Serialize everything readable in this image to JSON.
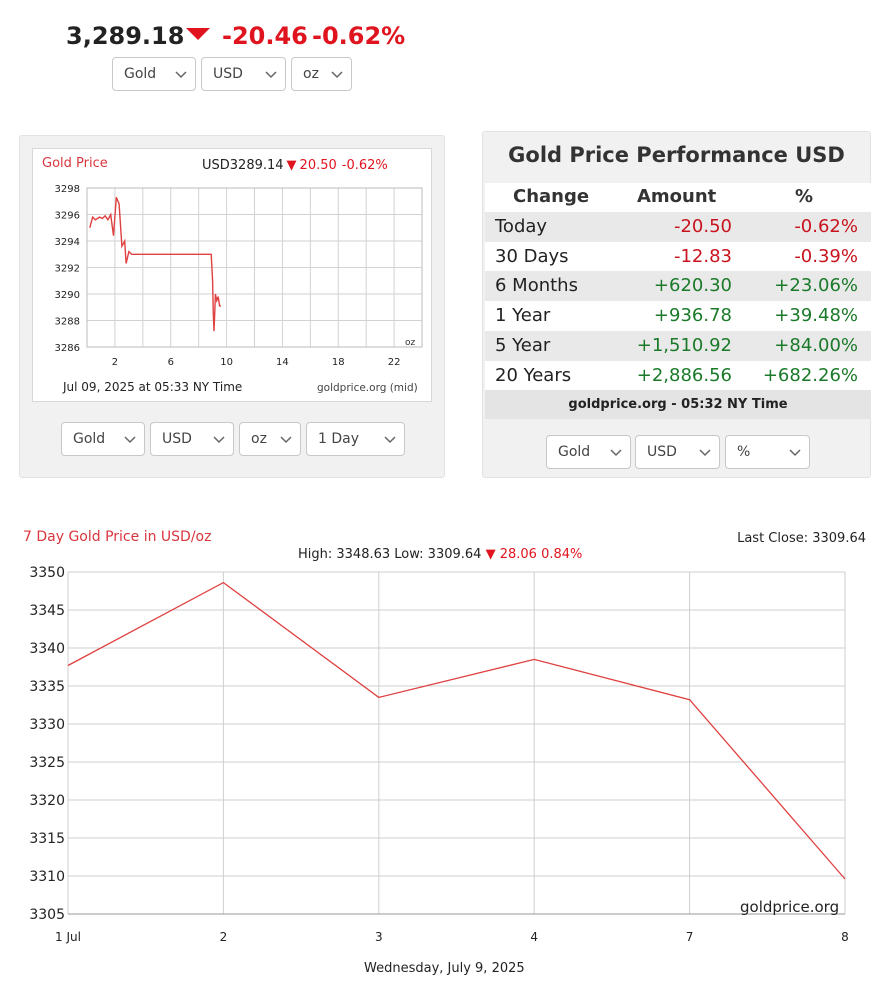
{
  "header": {
    "price": "3,289.18",
    "change": "-20.46",
    "change_pct": "-0.62%",
    "selects": {
      "metal": "Gold",
      "currency": "USD",
      "unit": "oz"
    }
  },
  "small_chart": {
    "title": "Gold Price",
    "quote_prefix": "USD3289.14",
    "quote_change": "20.50",
    "quote_pct": "-0.62%",
    "unit_label": "oz",
    "timestamp": "Jul 09, 2025 at 05:33 NY Time",
    "source": "goldprice.org (mid)",
    "selects": {
      "metal": "Gold",
      "currency": "USD",
      "unit": "oz",
      "range": "1 Day"
    }
  },
  "performance": {
    "title": "Gold Price Performance USD",
    "headers": {
      "change": "Change",
      "amount": "Amount",
      "pct": "%"
    },
    "rows": [
      {
        "label": "Today",
        "amount": "-20.50",
        "pct": "-0.62%",
        "dir": "neg"
      },
      {
        "label": "30 Days",
        "amount": "-12.83",
        "pct": "-0.39%",
        "dir": "neg"
      },
      {
        "label": "6 Months",
        "amount": "+620.30",
        "pct": "+23.06%",
        "dir": "pos"
      },
      {
        "label": "1 Year",
        "amount": "+936.78",
        "pct": "+39.48%",
        "dir": "pos"
      },
      {
        "label": "5 Year",
        "amount": "+1,510.92",
        "pct": "+84.00%",
        "dir": "pos"
      },
      {
        "label": "20 Years",
        "amount": "+2,886.56",
        "pct": "+682.26%",
        "dir": "pos"
      }
    ],
    "footer": "goldprice.org - 05:32 NY Time",
    "selects": {
      "metal": "Gold",
      "currency": "USD",
      "mode": "%"
    }
  },
  "big_chart": {
    "title": "7 Day Gold Price in USD/oz",
    "last_close_label": "Last Close: 3309.64",
    "high_low_label": "High: 3348.63 Low: 3309.64",
    "change_label": "28.06 0.84%",
    "watermark": "goldprice.org",
    "date_label": "Wednesday, July 9, 2025"
  },
  "colors": {
    "red": "#e0141e",
    "green": "#1b7a2a",
    "line": "#e04040"
  },
  "chart_data": [
    {
      "type": "line",
      "title": "Gold Price",
      "x_ticks": [
        "2",
        "6",
        "10",
        "14",
        "18",
        "22"
      ],
      "y_ticks": [
        "3298",
        "3296",
        "3294",
        "3292",
        "3290",
        "3288",
        "3286"
      ],
      "xlim": [
        0,
        24
      ],
      "ylim": [
        3286,
        3298
      ],
      "x": [
        0.2,
        0.4,
        0.6,
        0.9,
        1.1,
        1.3,
        1.5,
        1.7,
        1.9,
        2.1,
        2.3,
        2.5,
        2.7,
        2.8,
        3.0,
        3.2,
        3.5,
        3.8,
        4.0,
        4.5,
        5.0,
        5.5,
        6.0,
        6.5,
        7.0,
        7.5,
        8.0,
        8.5,
        8.9,
        9.0,
        9.05,
        9.1,
        9.15,
        9.2,
        9.3,
        9.4,
        9.5,
        9.6
      ],
      "y": [
        3295.0,
        3295.8,
        3295.6,
        3295.8,
        3295.7,
        3295.9,
        3295.6,
        3296.0,
        3294.4,
        3297.3,
        3296.8,
        3293.6,
        3294.0,
        3292.3,
        3293.2,
        3293.0,
        3293.0,
        3293.0,
        3293.0,
        3293.0,
        3293.0,
        3293.0,
        3293.0,
        3293.0,
        3293.0,
        3293.0,
        3293.0,
        3293.0,
        3293.0,
        3291.0,
        3288.5,
        3287.2,
        3288.5,
        3290.0,
        3289.5,
        3289.8,
        3289.1,
        3289.1
      ],
      "xlabel": "",
      "ylabel": ""
    },
    {
      "type": "line",
      "title": "7 Day Gold Price in USD/oz",
      "categories": [
        "1 Jul",
        "2",
        "3",
        "4",
        "7",
        "8"
      ],
      "values": [
        3337.7,
        3348.6,
        3333.5,
        3338.5,
        3333.2,
        3309.6
      ],
      "y_ticks": [
        "3350",
        "3345",
        "3340",
        "3335",
        "3330",
        "3325",
        "3320",
        "3315",
        "3310",
        "3305"
      ],
      "ylim": [
        3305,
        3350
      ],
      "xlabel": "Wednesday, July 9, 2025",
      "ylabel": ""
    }
  ]
}
